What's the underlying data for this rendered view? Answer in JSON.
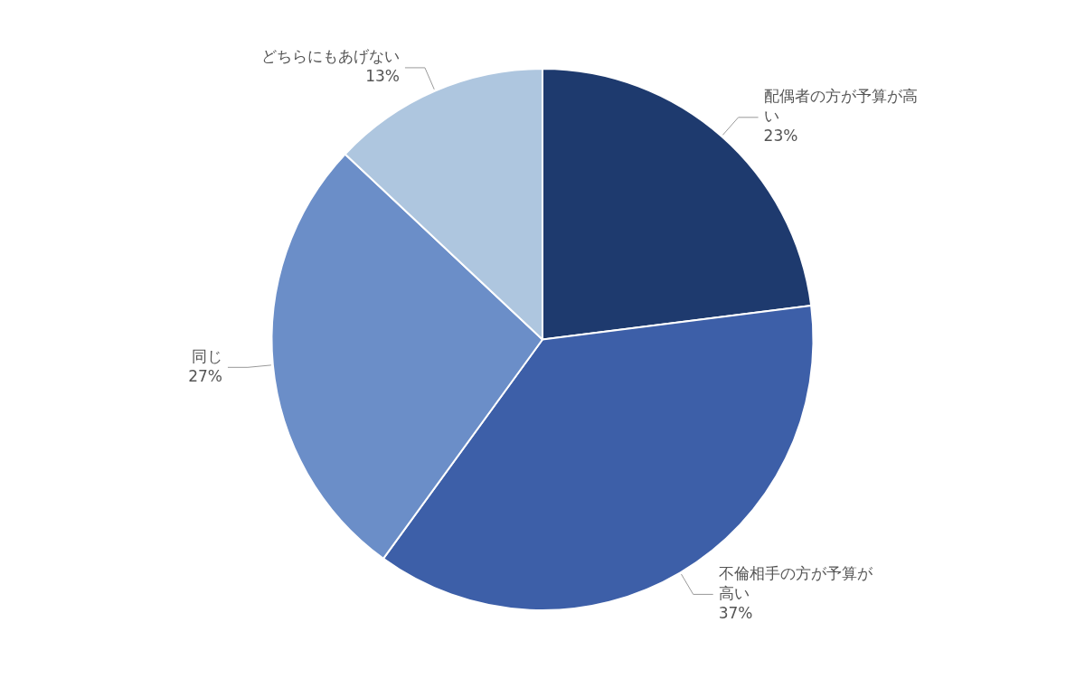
{
  "chart_data": {
    "type": "pie",
    "categories": [
      "配偶者の方が予算が高\nい",
      "不倫相手の方が予算が\n高い",
      "同じ",
      "どちらにもあげない"
    ],
    "values": [
      23,
      37,
      27,
      13
    ],
    "value_labels": [
      "23%",
      "37%",
      "27%",
      "13%"
    ],
    "colors": [
      "#1e3a6e",
      "#3d5fa8",
      "#6b8ec8",
      "#aec6df"
    ],
    "data_labels": true,
    "legend": false
  }
}
